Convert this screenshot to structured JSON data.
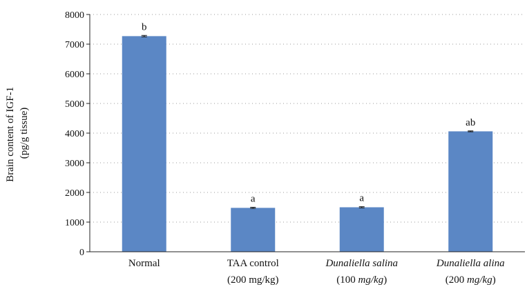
{
  "chart_data": {
    "type": "bar",
    "categories": [
      {
        "line1": "Normal",
        "line1_italic": false,
        "line2": "",
        "line2_math": ""
      },
      {
        "line1": "TAA control",
        "line1_italic": false,
        "line2": "(200 mg/kg)",
        "line2_math": ""
      },
      {
        "line1": "Dunaliella salina",
        "line1_italic": true,
        "line2": "(100 mg/kg)",
        "line2_math": "mg/kg"
      },
      {
        "line1": "Dunaliella alina",
        "line1_italic": true,
        "line2": "(200 mg/kg)",
        "line2_math": "mg/kg"
      }
    ],
    "values": [
      7270,
      1480,
      1500,
      4060
    ],
    "errors": [
      25,
      20,
      20,
      15
    ],
    "data_labels": [
      "b",
      "a",
      "a",
      "ab"
    ],
    "ylabel_line1": "Brain content of IGF-1",
    "ylabel_line2": "(pg/g tissue)",
    "ylim": [
      0,
      8000
    ],
    "yticks": [
      0,
      1000,
      2000,
      3000,
      4000,
      5000,
      6000,
      7000,
      8000
    ],
    "grid": true,
    "bar_color": "#5b87c5"
  }
}
